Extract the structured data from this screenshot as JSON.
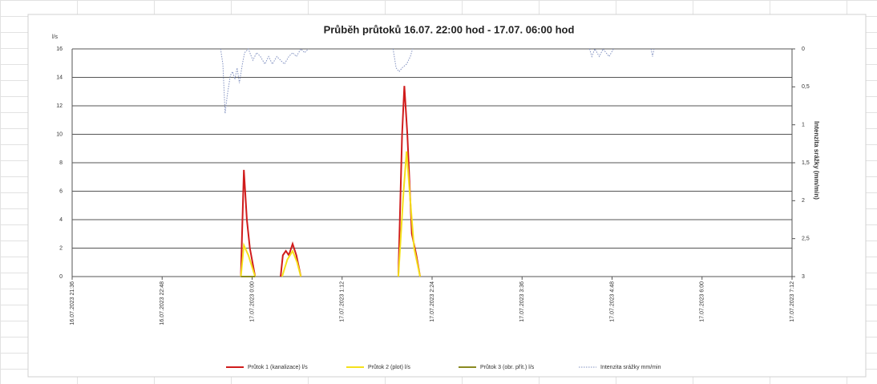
{
  "chart_data": {
    "type": "line",
    "title": "Průběh průtoků  16.07. 22:00 hod - 17.07.  06:00 hod",
    "y_label": "l/s",
    "y2_label": "Intenzita srážky (mm/min)",
    "xlim": [
      21.6,
      31.2
    ],
    "xticks": [
      {
        "value": 21.6,
        "label": "16.07.2023 21:36"
      },
      {
        "value": 22.8,
        "label": "16.07.2023 22:48"
      },
      {
        "value": 24,
        "label": "17.07.2023 0:00"
      },
      {
        "value": 25.2,
        "label": "17.07.2023 1:12"
      },
      {
        "value": 26.4,
        "label": "17.07.2023 2:24"
      },
      {
        "value": 27.6,
        "label": "17.07.2023 3:36"
      },
      {
        "value": 28.8,
        "label": "17.07.2023 4:48"
      },
      {
        "value": 30,
        "label": "17.07.2023 6:00"
      },
      {
        "value": 31.2,
        "label": "17.07.2023 7:12"
      }
    ],
    "ylim": [
      0,
      16
    ],
    "yticks": [
      0,
      2,
      4,
      6,
      8,
      10,
      12,
      14,
      16
    ],
    "y2lim": [
      3,
      0
    ],
    "y2ticks": [
      0,
      {
        "value": 0.5,
        "label": "0,5"
      },
      1,
      {
        "value": 1.5,
        "label": "1,5"
      },
      2,
      {
        "value": 2.5,
        "label": "2,5"
      },
      3
    ],
    "grid": true,
    "legend": "bottom",
    "series": [
      {
        "name": "Průtok 1 (kanalizace) l/s",
        "color": "#d01c1c",
        "style": "solid",
        "x": [
          23.85,
          23.89,
          23.93,
          23.97,
          24.04,
          24.2,
          24.38,
          24.41,
          24.45,
          24.49,
          24.54,
          24.59,
          24.65,
          25.3,
          25.95,
          26.0,
          26.03,
          26.07,
          26.13,
          26.19,
          26.24
        ],
        "values": [
          0,
          7.5,
          4,
          2,
          0,
          null,
          0,
          1.5,
          1.8,
          1.5,
          2.3,
          1.5,
          0,
          null,
          0,
          10,
          13.4,
          10,
          3,
          1.5,
          0
        ]
      },
      {
        "name": "Průtok 2 (plot) l/s",
        "color": "#f5e11b",
        "style": "solid",
        "x": [
          23.85,
          23.89,
          23.95,
          24.04,
          24.2,
          24.4,
          24.47,
          24.54,
          24.6,
          24.65,
          25.3,
          25.95,
          26.02,
          26.06,
          26.1,
          26.16,
          26.24
        ],
        "values": [
          0,
          2.2,
          1.5,
          0,
          null,
          0,
          1.2,
          1.8,
          1,
          0,
          null,
          0,
          6,
          8.8,
          6,
          2,
          0
        ]
      },
      {
        "name": "Průtok 3 (obr. přít.) l/s",
        "color": "#8a8a20",
        "style": "solid",
        "x": [
          23.85,
          24.04
        ],
        "values": [
          0,
          0
        ]
      },
      {
        "name": "Intenzita srážky mm/min",
        "color": "#8090c0",
        "style": "dotted",
        "axis": "y2",
        "x": [
          23.58,
          23.61,
          23.64,
          23.67,
          23.71,
          23.74,
          23.77,
          23.8,
          23.83,
          23.87,
          23.9,
          23.95,
          24.01,
          24.06,
          24.11,
          24.17,
          24.22,
          24.27,
          24.33,
          24.38,
          24.43,
          24.49,
          24.54,
          24.59,
          24.65,
          24.7,
          24.75,
          25.3,
          25.88,
          25.92,
          25.96,
          26.0,
          26.06,
          26.11,
          26.14,
          27.5,
          28.5,
          28.53,
          28.57,
          28.63,
          28.68,
          28.76,
          28.82,
          29.0,
          29.32,
          29.34,
          29.36
        ],
        "values": [
          0,
          0.2,
          0.85,
          0.6,
          0.35,
          0.3,
          0.4,
          0.25,
          0.45,
          0.2,
          0.05,
          0,
          0.15,
          0.05,
          0.1,
          0.2,
          0.1,
          0.2,
          0.1,
          0.15,
          0.2,
          0.1,
          0.05,
          0.1,
          0,
          0.05,
          0,
          null,
          0,
          0.25,
          0.3,
          0.25,
          0.2,
          0.1,
          0,
          null,
          0,
          0.1,
          0,
          0.1,
          0,
          0.1,
          0,
          null,
          0,
          0.1,
          0
        ]
      }
    ]
  }
}
